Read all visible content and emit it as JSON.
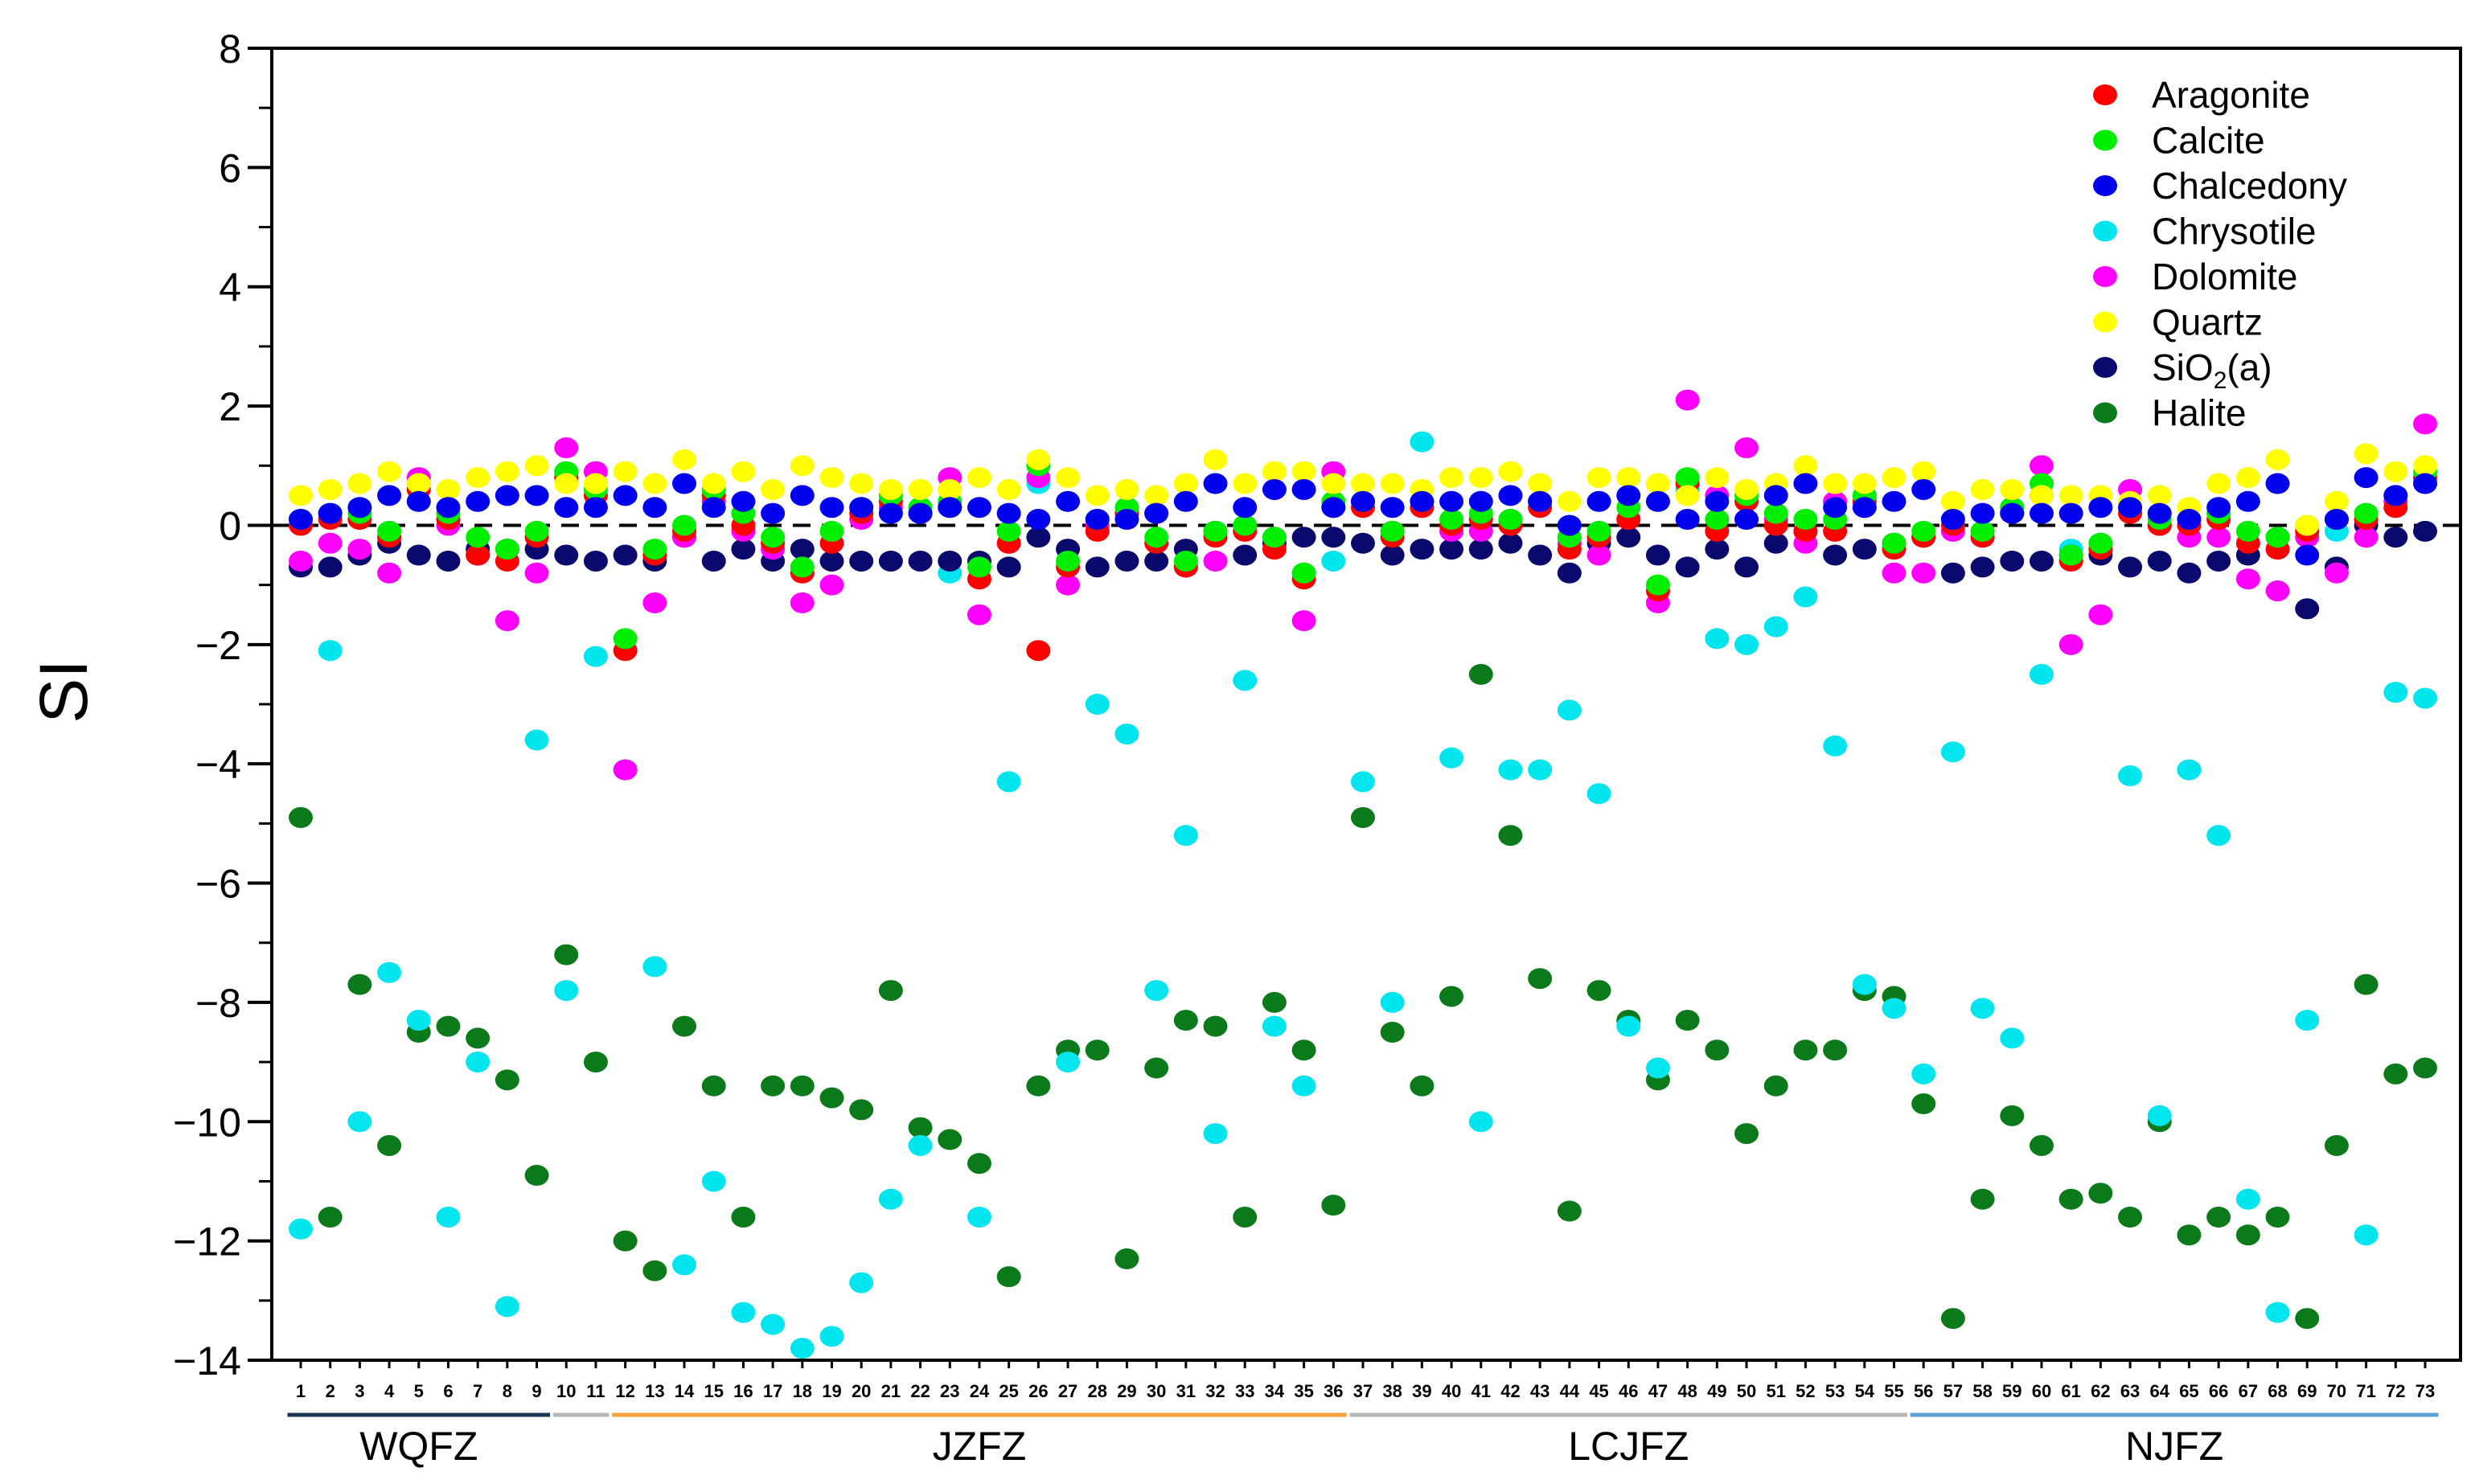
{
  "chart_data": {
    "type": "scatter",
    "ylabel": "SI",
    "ylim": [
      -14,
      8
    ],
    "yticks": [
      8,
      6,
      4,
      2,
      0,
      -2,
      -4,
      -6,
      -8,
      -10,
      -12,
      -14
    ],
    "ytick_labels": [
      "8",
      "6",
      "4",
      "2",
      "0",
      "−2",
      "−4",
      "−6",
      "−8",
      "−10",
      "−12",
      "−14"
    ],
    "reference_line": {
      "y": 0,
      "style": "dashed"
    },
    "legend_position": "top-right",
    "categories": [
      "1",
      "2",
      "3",
      "4",
      "5",
      "6",
      "7",
      "8",
      "9",
      "10",
      "11",
      "12",
      "13",
      "14",
      "15",
      "16",
      "17",
      "18",
      "19",
      "20",
      "21",
      "22",
      "23",
      "24",
      "25",
      "26",
      "27",
      "28",
      "29",
      "30",
      "31",
      "32",
      "33",
      "34",
      "35",
      "36",
      "37",
      "38",
      "39",
      "40",
      "41",
      "42",
      "43",
      "44",
      "45",
      "46",
      "47",
      "48",
      "49",
      "50",
      "51",
      "52",
      "53",
      "54",
      "55",
      "56",
      "57",
      "58",
      "59",
      "60",
      "61",
      "62",
      "63",
      "64",
      "65",
      "66",
      "67",
      "68",
      "69",
      "70",
      "71",
      "72",
      "73"
    ],
    "groups": [
      {
        "label": "WQFZ",
        "from": 1,
        "to": 9,
        "color": "#1c3557"
      },
      {
        "label": "",
        "from": 10,
        "to": 11,
        "color": "#b8b8b8"
      },
      {
        "label": "JZFZ",
        "from": 12,
        "to": 36,
        "color": "#f2a23c"
      },
      {
        "label": "LCJFZ",
        "from": 37,
        "to": 55,
        "color": "#b8b8b8"
      },
      {
        "label": "NJFZ",
        "from": 56,
        "to": 73,
        "color": "#5f9fd1"
      }
    ],
    "series": [
      {
        "name": "Aragonite",
        "color": "#ff0000",
        "values": [
          0.0,
          0.1,
          0.1,
          -0.2,
          0.6,
          0.1,
          -0.5,
          -0.6,
          -0.2,
          0.8,
          0.5,
          -2.1,
          -0.5,
          -0.1,
          0.5,
          0.0,
          -0.3,
          -0.8,
          -0.3,
          0.2,
          0.4,
          0.2,
          0.3,
          -0.9,
          -0.3,
          -2.1,
          -0.7,
          -0.1,
          0.2,
          -0.3,
          -0.7,
          -0.2,
          -0.1,
          -0.4,
          -0.9,
          0.3,
          0.3,
          -0.2,
          0.3,
          0.0,
          0.1,
          0.0,
          0.3,
          -0.4,
          -0.2,
          0.1,
          -1.1,
          0.7,
          -0.1,
          0.4,
          0.0,
          -0.1,
          -0.1,
          0.4,
          -0.4,
          -0.2,
          0.0,
          -0.2,
          0.2,
          0.5,
          -0.6,
          -0.4,
          0.2,
          0.0,
          0.0,
          0.1,
          -0.3,
          -0.4,
          -0.1,
          0.1,
          0.1,
          0.3,
          0.8
        ]
      },
      {
        "name": "Calcite",
        "color": "#00ee00",
        "values": [
          0.1,
          0.2,
          0.2,
          -0.1,
          0.7,
          0.2,
          -0.2,
          -0.4,
          -0.1,
          0.9,
          0.6,
          -1.9,
          -0.4,
          0.0,
          0.6,
          0.2,
          -0.2,
          -0.7,
          -0.1,
          0.3,
          0.5,
          0.3,
          0.4,
          -0.7,
          -0.1,
          1.0,
          -0.6,
          0.1,
          0.3,
          -0.2,
          -0.6,
          -0.1,
          0.0,
          -0.2,
          -0.8,
          0.4,
          0.4,
          -0.1,
          0.4,
          0.1,
          0.2,
          0.1,
          0.4,
          -0.2,
          -0.1,
          0.3,
          -1.0,
          0.8,
          0.1,
          0.5,
          0.2,
          0.1,
          0.1,
          0.5,
          -0.3,
          -0.1,
          0.1,
          -0.1,
          0.3,
          0.7,
          -0.5,
          -0.3,
          0.3,
          0.1,
          0.1,
          0.2,
          -0.1,
          -0.2,
          0.0,
          0.1,
          0.2,
          0.5,
          0.9
        ]
      },
      {
        "name": "Chalcedony",
        "color": "#0000ee",
        "values": [
          0.1,
          0.2,
          0.3,
          0.5,
          0.4,
          0.3,
          0.4,
          0.5,
          0.5,
          0.3,
          0.3,
          0.5,
          0.3,
          0.7,
          0.3,
          0.4,
          0.2,
          0.5,
          0.3,
          0.3,
          0.2,
          0.2,
          0.3,
          0.3,
          0.2,
          0.1,
          0.4,
          0.1,
          0.1,
          0.2,
          0.4,
          0.7,
          0.3,
          0.6,
          0.6,
          0.3,
          0.4,
          0.3,
          0.4,
          0.4,
          0.4,
          0.5,
          0.4,
          0.0,
          0.4,
          0.5,
          0.4,
          0.1,
          0.4,
          0.1,
          0.5,
          0.7,
          0.3,
          0.3,
          0.4,
          0.6,
          0.1,
          0.2,
          0.2,
          0.2,
          0.2,
          0.3,
          0.3,
          0.2,
          0.1,
          0.3,
          0.4,
          0.7,
          -0.5,
          0.1,
          0.8,
          0.5,
          0.7
        ]
      },
      {
        "name": "Chrysotile",
        "color": "#00e5ee",
        "values": [
          -11.8,
          -2.1,
          -10.0,
          -7.5,
          -8.3,
          -11.6,
          -9.0,
          -13.1,
          -3.6,
          -7.8,
          -2.2,
          -4.1,
          -7.4,
          -12.4,
          -11.0,
          -13.2,
          -13.4,
          -13.8,
          -13.6,
          -12.7,
          -11.3,
          -10.4,
          -0.8,
          -11.6,
          -4.3,
          0.7,
          -9.0,
          -3.0,
          -3.5,
          -7.8,
          -5.2,
          -10.2,
          -2.6,
          -8.4,
          -9.4,
          -0.6,
          -4.3,
          -8.0,
          1.4,
          -3.9,
          -10.0,
          -4.1,
          -4.1,
          -3.1,
          -4.5,
          -8.4,
          -9.1,
          0.6,
          -1.9,
          -2.0,
          -1.7,
          -1.2,
          -3.7,
          -7.7,
          -8.1,
          -9.2,
          -3.8,
          -8.1,
          -8.6,
          -2.5,
          -0.4,
          -0.3,
          -4.2,
          -9.9,
          -4.1,
          -5.2,
          -11.3,
          -13.2,
          -8.3,
          -0.1,
          -11.9,
          -2.8,
          -2.9
        ]
      },
      {
        "name": "Dolomite",
        "color": "#ff00ff",
        "values": [
          -0.6,
          -0.3,
          -0.4,
          -0.8,
          0.8,
          0.0,
          -0.5,
          -1.6,
          -0.8,
          1.3,
          0.9,
          -4.1,
          -1.3,
          -0.2,
          0.4,
          -0.1,
          -0.4,
          -1.3,
          -1.0,
          0.1,
          0.3,
          0.2,
          0.8,
          -1.5,
          -0.3,
          0.8,
          -1.0,
          0.0,
          0.2,
          0.2,
          -0.7,
          -0.6,
          0.0,
          -0.2,
          -1.6,
          0.9,
          0.4,
          -0.1,
          0.3,
          -0.1,
          -0.1,
          0.1,
          0.4,
          -0.3,
          -0.5,
          0.1,
          -1.3,
          2.1,
          0.5,
          1.3,
          0.1,
          -0.3,
          0.4,
          0.3,
          -0.8,
          -0.8,
          -0.1,
          -0.2,
          0.3,
          1.0,
          -2.0,
          -1.5,
          0.6,
          0.0,
          -0.2,
          -0.2,
          -0.9,
          -1.1,
          -0.2,
          -0.8,
          -0.2,
          0.4,
          1.7
        ]
      },
      {
        "name": "Quartz",
        "color": "#ffff00",
        "values": [
          0.5,
          0.6,
          0.7,
          0.9,
          0.7,
          0.6,
          0.8,
          0.9,
          1.0,
          0.7,
          0.7,
          0.9,
          0.7,
          1.1,
          0.7,
          0.9,
          0.6,
          1.0,
          0.8,
          0.7,
          0.6,
          0.6,
          0.6,
          0.8,
          0.6,
          1.1,
          0.8,
          0.5,
          0.6,
          0.5,
          0.7,
          1.1,
          0.7,
          0.9,
          0.9,
          0.7,
          0.7,
          0.7,
          0.6,
          0.8,
          0.8,
          0.9,
          0.7,
          0.4,
          0.8,
          0.8,
          0.7,
          0.5,
          0.8,
          0.6,
          0.7,
          1.0,
          0.7,
          0.7,
          0.8,
          0.9,
          0.4,
          0.6,
          0.6,
          0.5,
          0.5,
          0.5,
          0.4,
          0.5,
          0.3,
          0.7,
          0.8,
          1.1,
          0.0,
          0.4,
          1.2,
          0.9,
          1.0
        ]
      },
      {
        "name": "SiO₂(a)",
        "color": "#0a0a6e",
        "values": [
          -0.7,
          -0.7,
          -0.5,
          -0.3,
          -0.5,
          -0.6,
          -0.4,
          -0.4,
          -0.4,
          -0.5,
          -0.6,
          -0.5,
          -0.6,
          -0.2,
          -0.6,
          -0.4,
          -0.6,
          -0.4,
          -0.6,
          -0.6,
          -0.6,
          -0.6,
          -0.6,
          -0.6,
          -0.7,
          -0.2,
          -0.4,
          -0.7,
          -0.6,
          -0.6,
          -0.4,
          -0.1,
          -0.5,
          -0.3,
          -0.2,
          -0.2,
          -0.3,
          -0.5,
          -0.4,
          -0.4,
          -0.4,
          -0.3,
          -0.5,
          -0.8,
          -0.3,
          -0.2,
          -0.5,
          -0.7,
          -0.4,
          -0.7,
          -0.3,
          -0.1,
          -0.5,
          -0.4,
          -0.3,
          -0.2,
          -0.8,
          -0.7,
          -0.6,
          -0.6,
          -0.5,
          -0.5,
          -0.7,
          -0.6,
          -0.8,
          -0.6,
          -0.5,
          -0.2,
          -1.4,
          -0.7,
          0.0,
          -0.2,
          -0.1
        ]
      },
      {
        "name": "Halite",
        "color": "#0a7a1a",
        "values": [
          -4.9,
          -11.6,
          -7.7,
          -10.4,
          -8.5,
          -8.4,
          -8.6,
          -9.3,
          -10.9,
          -7.2,
          -9.0,
          -12.0,
          -12.5,
          -8.4,
          -9.4,
          -11.6,
          -9.4,
          -9.4,
          -9.6,
          -9.8,
          -7.8,
          -10.1,
          -10.3,
          -10.7,
          -12.6,
          -9.4,
          -8.8,
          -8.8,
          -12.3,
          -9.1,
          -8.3,
          -8.4,
          -11.6,
          -8.0,
          -8.8,
          -11.4,
          -4.9,
          -8.5,
          -9.4,
          -7.9,
          -2.5,
          -5.2,
          -7.6,
          -11.5,
          -7.8,
          -8.3,
          -9.3,
          -8.3,
          -8.8,
          -10.2,
          -9.4,
          -8.8,
          -8.8,
          -7.8,
          -7.9,
          -9.7,
          -13.3,
          -11.3,
          -9.9,
          -10.4,
          -11.3,
          -11.2,
          -11.6,
          -10.0,
          -11.9,
          -11.6,
          -11.9,
          -11.6,
          -13.3,
          -10.4,
          -7.7,
          -9.2,
          -9.1
        ]
      }
    ]
  }
}
